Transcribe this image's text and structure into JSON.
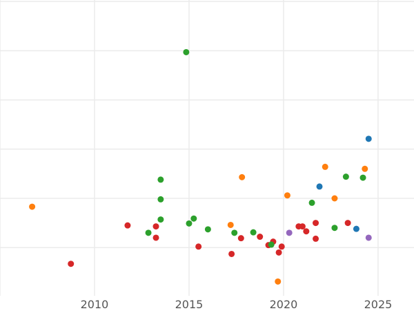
{
  "chart_data": {
    "type": "scatter",
    "title": "",
    "xlabel": "",
    "ylabel": "",
    "xlim": [
      2005.0,
      2026.9
    ],
    "ylim": [
      -0.98,
      5.03
    ],
    "x_ticks": [
      2010,
      2015,
      2020,
      2025
    ],
    "y_gridlines": [
      0,
      1,
      2,
      3,
      4,
      5
    ],
    "grid": true,
    "legend": "none",
    "series": [
      {
        "color": "#d62728",
        "points": [
          {
            "x": 2008.75,
            "y": -0.33
          },
          {
            "x": 2011.75,
            "y": 0.45
          },
          {
            "x": 2013.25,
            "y": 0.43
          },
          {
            "x": 2013.25,
            "y": 0.2
          },
          {
            "x": 2015.5,
            "y": 0.02
          },
          {
            "x": 2017.25,
            "y": -0.13
          },
          {
            "x": 2017.75,
            "y": 0.19
          },
          {
            "x": 2018.75,
            "y": 0.22
          },
          {
            "x": 2019.2,
            "y": 0.05
          },
          {
            "x": 2019.45,
            "y": 0.12
          },
          {
            "x": 2019.75,
            "y": -0.1
          },
          {
            "x": 2019.9,
            "y": 0.02
          },
          {
            "x": 2020.8,
            "y": 0.43
          },
          {
            "x": 2021.0,
            "y": 0.43
          },
          {
            "x": 2021.2,
            "y": 0.33
          },
          {
            "x": 2021.7,
            "y": 0.5
          },
          {
            "x": 2021.7,
            "y": 0.18
          },
          {
            "x": 2023.4,
            "y": 0.5
          }
        ]
      },
      {
        "color": "#2ca02c",
        "points": [
          {
            "x": 2012.85,
            "y": 0.3
          },
          {
            "x": 2013.5,
            "y": 1.38
          },
          {
            "x": 2013.5,
            "y": 0.98
          },
          {
            "x": 2013.5,
            "y": 0.57
          },
          {
            "x": 2014.85,
            "y": 3.97
          },
          {
            "x": 2015.0,
            "y": 0.49
          },
          {
            "x": 2015.25,
            "y": 0.59
          },
          {
            "x": 2016.0,
            "y": 0.37
          },
          {
            "x": 2017.4,
            "y": 0.3
          },
          {
            "x": 2018.4,
            "y": 0.31
          },
          {
            "x": 2019.35,
            "y": 0.06
          },
          {
            "x": 2021.5,
            "y": 0.91
          },
          {
            "x": 2022.7,
            "y": 0.4
          },
          {
            "x": 2023.3,
            "y": 1.44
          },
          {
            "x": 2024.2,
            "y": 1.42
          }
        ]
      },
      {
        "color": "#ff7f0e",
        "points": [
          {
            "x": 2006.7,
            "y": 0.83
          },
          {
            "x": 2017.2,
            "y": 0.46
          },
          {
            "x": 2017.8,
            "y": 1.43
          },
          {
            "x": 2019.7,
            "y": -0.69
          },
          {
            "x": 2020.2,
            "y": 1.06
          },
          {
            "x": 2022.2,
            "y": 1.64
          },
          {
            "x": 2022.7,
            "y": 1.0
          },
          {
            "x": 2024.3,
            "y": 1.6
          }
        ]
      },
      {
        "color": "#1f77b4",
        "points": [
          {
            "x": 2021.9,
            "y": 1.24
          },
          {
            "x": 2023.85,
            "y": 0.38
          },
          {
            "x": 2024.5,
            "y": 2.21
          }
        ]
      },
      {
        "color": "#9467bd",
        "points": [
          {
            "x": 2020.3,
            "y": 0.3
          },
          {
            "x": 2024.5,
            "y": 0.2
          }
        ]
      }
    ]
  }
}
